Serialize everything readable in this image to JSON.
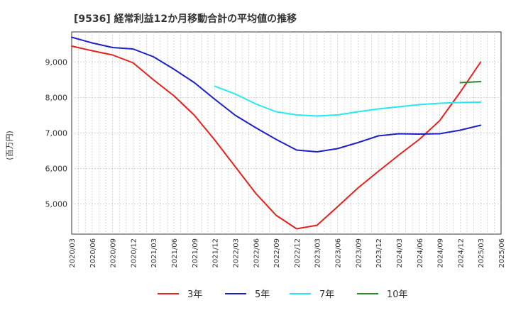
{
  "chart_data": {
    "type": "line",
    "title": "[9536]  経常利益12か月移動合計の平均値の推移",
    "ylabel": "(百万円)",
    "xlabel": "",
    "ylim": [
      4150,
      9850
    ],
    "yticks": [
      5000,
      6000,
      7000,
      8000,
      9000
    ],
    "ytick_labels": [
      "5,000",
      "6,000",
      "7,000",
      "8,000",
      "9,000"
    ],
    "x_ticks": [
      "2020/03",
      "2020/06",
      "2020/09",
      "2020/12",
      "2021/03",
      "2021/06",
      "2021/09",
      "2021/12",
      "2022/03",
      "2022/06",
      "2022/09",
      "2022/12",
      "2023/03",
      "2023/06",
      "2023/09",
      "2023/12",
      "2024/03",
      "2024/06",
      "2024/09",
      "2024/12",
      "2025/03",
      "2025/06"
    ],
    "grid": "dashed",
    "legend": "bottom",
    "series": [
      {
        "name": "3年",
        "color": "#e8201c",
        "values": [
          [
            "2020/03",
            9450
          ],
          [
            "2020/06",
            9320
          ],
          [
            "2020/09",
            9200
          ],
          [
            "2020/12",
            8980
          ],
          [
            "2021/03",
            8500
          ],
          [
            "2021/06",
            8050
          ],
          [
            "2021/09",
            7500
          ],
          [
            "2021/12",
            6800
          ],
          [
            "2022/03",
            6050
          ],
          [
            "2022/06",
            5300
          ],
          [
            "2022/09",
            4680
          ],
          [
            "2022/12",
            4300
          ],
          [
            "2023/03",
            4400
          ],
          [
            "2023/06",
            4920
          ],
          [
            "2023/09",
            5450
          ],
          [
            "2023/12",
            5920
          ],
          [
            "2024/03",
            6380
          ],
          [
            "2024/06",
            6820
          ],
          [
            "2024/09",
            7350
          ],
          [
            "2024/12",
            8150
          ],
          [
            "2025/03",
            9000
          ]
        ]
      },
      {
        "name": "5年",
        "color": "#1c20c6",
        "values": [
          [
            "2020/03",
            9700
          ],
          [
            "2020/06",
            9540
          ],
          [
            "2020/09",
            9410
          ],
          [
            "2020/12",
            9370
          ],
          [
            "2021/03",
            9150
          ],
          [
            "2021/06",
            8800
          ],
          [
            "2021/09",
            8420
          ],
          [
            "2021/12",
            7950
          ],
          [
            "2022/03",
            7500
          ],
          [
            "2022/06",
            7150
          ],
          [
            "2022/09",
            6820
          ],
          [
            "2022/12",
            6520
          ],
          [
            "2023/03",
            6470
          ],
          [
            "2023/06",
            6560
          ],
          [
            "2023/09",
            6730
          ],
          [
            "2023/12",
            6920
          ],
          [
            "2024/03",
            6980
          ],
          [
            "2024/06",
            6970
          ],
          [
            "2024/09",
            6980
          ],
          [
            "2024/12",
            7080
          ],
          [
            "2025/03",
            7220
          ]
        ]
      },
      {
        "name": "7年",
        "color": "#27e8ee",
        "values": [
          [
            "2021/12",
            8320
          ],
          [
            "2022/03",
            8100
          ],
          [
            "2022/06",
            7820
          ],
          [
            "2022/09",
            7600
          ],
          [
            "2022/12",
            7510
          ],
          [
            "2023/03",
            7480
          ],
          [
            "2023/06",
            7510
          ],
          [
            "2023/09",
            7600
          ],
          [
            "2023/12",
            7680
          ],
          [
            "2024/03",
            7740
          ],
          [
            "2024/06",
            7800
          ],
          [
            "2024/09",
            7840
          ],
          [
            "2024/12",
            7860
          ],
          [
            "2025/03",
            7870
          ]
        ]
      },
      {
        "name": "10年",
        "color": "#2a8a2a",
        "values": [
          [
            "2024/12",
            8420
          ],
          [
            "2025/03",
            8450
          ]
        ]
      }
    ]
  }
}
